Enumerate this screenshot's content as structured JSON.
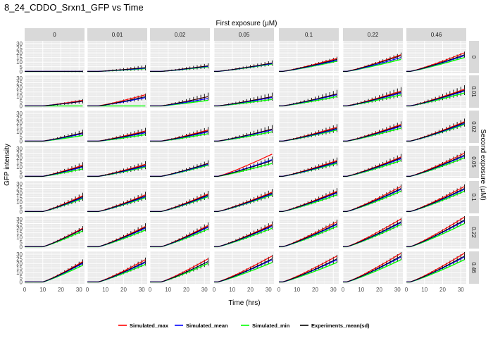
{
  "chart_data": {
    "type": "line",
    "title": "8_24_CDDO_Srxn1_GFP vs Time",
    "xlabel": "Time (hrs)",
    "ylabel": "GFP intensity",
    "facet_col_title": "First exposure (µM)",
    "facet_row_title": "Second exposure (µM)",
    "col_levels": [
      "0",
      "0.01",
      "0.02",
      "0.05",
      "0.1",
      "0.22",
      "0.46"
    ],
    "row_levels": [
      "0",
      "0.01",
      "0.02",
      "0.05",
      "0.1",
      "0.22",
      "0.46"
    ],
    "xlim": [
      0,
      33
    ],
    "ylim": [
      -2,
      33
    ],
    "x_ticks": [
      0,
      10,
      20,
      30
    ],
    "y_ticks": [
      0,
      5,
      10,
      15,
      20,
      25,
      30
    ],
    "grid": true,
    "legend_position": "bottom",
    "legend": [
      {
        "name": "Simulated_max",
        "color": "#ff0000"
      },
      {
        "name": "Simulated_mean",
        "color": "#0000ff"
      },
      {
        "name": "Simulated_min",
        "color": "#00ff00"
      },
      {
        "name": "Experiments_mean(sd)",
        "color": "#000000"
      }
    ],
    "time_points": [
      0,
      2,
      4,
      6,
      8,
      10,
      12,
      14,
      16,
      18,
      20,
      22,
      24,
      26,
      28,
      30,
      32
    ],
    "panel_final_values": [
      [
        {
          "max": 0,
          "mean": 0,
          "min": 0,
          "exp": 0,
          "sd": 0.5
        },
        {
          "max": 4,
          "mean": 3.5,
          "min": 3,
          "exp": 4,
          "sd": 2.5
        },
        {
          "max": 6,
          "mean": 5.5,
          "min": 5,
          "exp": 6,
          "sd": 2.5
        },
        {
          "max": 9,
          "mean": 8.5,
          "min": 8,
          "exp": 9,
          "sd": 2.5
        },
        {
          "max": 14,
          "mean": 12,
          "min": 11,
          "exp": 13,
          "sd": 2.5
        },
        {
          "max": 18,
          "mean": 15,
          "min": 13,
          "exp": 17,
          "sd": 3
        },
        {
          "max": 20,
          "mean": 17,
          "min": 15,
          "exp": 18,
          "sd": 3
        }
      ],
      [
        {
          "max": 6,
          "mean": 5,
          "min": 0,
          "exp": 5,
          "sd": 2
        },
        {
          "max": 12,
          "mean": 9,
          "min": 0,
          "exp": 10,
          "sd": 3
        },
        {
          "max": 10,
          "mean": 8,
          "min": 6,
          "exp": 10,
          "sd": 4
        },
        {
          "max": 10,
          "mean": 9,
          "min": 7,
          "exp": 10,
          "sd": 4
        },
        {
          "max": 13,
          "mean": 12,
          "min": 10,
          "exp": 13,
          "sd": 4
        },
        {
          "max": 16,
          "mean": 14,
          "min": 12,
          "exp": 15,
          "sd": 5
        },
        {
          "max": 18,
          "mean": 16,
          "min": 14,
          "exp": 17,
          "sd": 5
        }
      ],
      [
        {
          "max": 9,
          "mean": 8,
          "min": 6,
          "exp": 9,
          "sd": 3
        },
        {
          "max": 11,
          "mean": 9,
          "min": 7,
          "exp": 10,
          "sd": 4
        },
        {
          "max": 12,
          "mean": 10,
          "min": 8,
          "exp": 11,
          "sd": 4
        },
        {
          "max": 13,
          "mean": 12,
          "min": 10,
          "exp": 13,
          "sd": 4
        },
        {
          "max": 15,
          "mean": 13,
          "min": 12,
          "exp": 14,
          "sd": 4
        },
        {
          "max": 18,
          "mean": 16,
          "min": 14,
          "exp": 17,
          "sd": 4
        },
        {
          "max": 21,
          "mean": 19,
          "min": 18,
          "exp": 20,
          "sd": 4
        }
      ],
      [
        {
          "max": 12,
          "mean": 10,
          "min": 8,
          "exp": 11,
          "sd": 4
        },
        {
          "max": 13,
          "mean": 11,
          "min": 10,
          "exp": 12,
          "sd": 4
        },
        {
          "max": 14,
          "mean": 13,
          "min": 12,
          "exp": 14,
          "sd": 3
        },
        {
          "max": 24,
          "mean": 18,
          "min": 14,
          "exp": 17,
          "sd": 4
        },
        {
          "max": 17,
          "mean": 15,
          "min": 14,
          "exp": 16,
          "sd": 4
        },
        {
          "max": 21,
          "mean": 19,
          "min": 17,
          "exp": 20,
          "sd": 4
        },
        {
          "max": 25,
          "mean": 22,
          "min": 20,
          "exp": 23,
          "sd": 4
        }
      ],
      [
        {
          "max": 17,
          "mean": 15,
          "min": 14,
          "exp": 16,
          "sd": 4
        },
        {
          "max": 18,
          "mean": 16,
          "min": 15,
          "exp": 17,
          "sd": 4
        },
        {
          "max": 19,
          "mean": 17,
          "min": 16,
          "exp": 18,
          "sd": 4
        },
        {
          "max": 21,
          "mean": 19,
          "min": 18,
          "exp": 20,
          "sd": 4
        },
        {
          "max": 22,
          "mean": 20,
          "min": 18,
          "exp": 21,
          "sd": 4
        },
        {
          "max": 27,
          "mean": 24,
          "min": 22,
          "exp": 25,
          "sd": 4
        },
        {
          "max": 27,
          "mean": 24,
          "min": 22,
          "exp": 25,
          "sd": 4
        }
      ],
      [
        {
          "max": 20,
          "mean": 19,
          "min": 17,
          "exp": 19,
          "sd": 3
        },
        {
          "max": 22,
          "mean": 20,
          "min": 18,
          "exp": 21,
          "sd": 4
        },
        {
          "max": 23,
          "mean": 21,
          "min": 19,
          "exp": 22,
          "sd": 4
        },
        {
          "max": 24,
          "mean": 22,
          "min": 20,
          "exp": 23,
          "sd": 4
        },
        {
          "max": 27,
          "mean": 24,
          "min": 22,
          "exp": 25,
          "sd": 4
        },
        {
          "max": 30,
          "mean": 26,
          "min": 24,
          "exp": 27,
          "sd": 4
        },
        {
          "max": 32,
          "mean": 28,
          "min": 25,
          "exp": 29,
          "sd": 4
        }
      ],
      [
        {
          "max": 22,
          "mean": 20,
          "min": 18,
          "exp": 21,
          "sd": 3
        },
        {
          "max": 24,
          "mean": 21,
          "min": 19,
          "exp": 22,
          "sd": 4
        },
        {
          "max": 25,
          "mean": 22,
          "min": 20,
          "exp": 22,
          "sd": 4
        },
        {
          "max": 28,
          "mean": 24,
          "min": 21,
          "exp": 25,
          "sd": 4
        },
        {
          "max": 28,
          "mean": 24,
          "min": 21,
          "exp": 25,
          "sd": 4
        },
        {
          "max": 31,
          "mean": 27,
          "min": 24,
          "exp": 28,
          "sd": 4
        },
        {
          "max": 31,
          "mean": 27,
          "min": 24,
          "exp": 28,
          "sd": 4
        }
      ]
    ]
  }
}
